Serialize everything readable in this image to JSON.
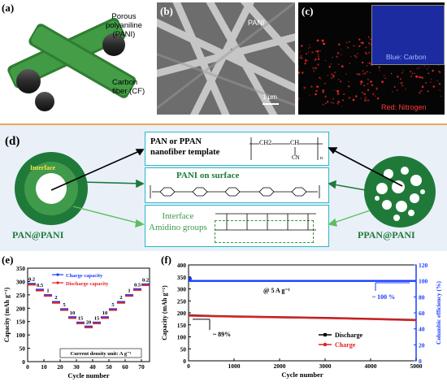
{
  "panels": {
    "a": {
      "label": "(a)",
      "pani_label": "Porous\npolyaniline\n(PANI)",
      "cf_label": "Carbon\nfiber (CF)"
    },
    "b": {
      "label": "(b)",
      "pani_label": "PANI",
      "scale_label": "1 μm"
    },
    "c": {
      "label": "(c)",
      "inset_label": "Blue: Carbon",
      "main_label": "Red: Nitrogen"
    },
    "d": {
      "label": "(d)",
      "interface_label": "Interface",
      "left_caption": "PAN@PANI",
      "right_caption": "PPAN@PANI",
      "box1_title": "PAN or PPAN\nnanofiber template",
      "box2_title": "PANI on surface",
      "box3_title": "Interface\nAmidino groups",
      "formula_ch2": "CH2",
      "formula_ch": "CH",
      "formula_cn": "CN",
      "formula_n": "n"
    },
    "e": {
      "label": "(e)"
    },
    "f": {
      "label": "(f)"
    }
  },
  "colors": {
    "green_dark": "#1f7a3a",
    "green_ring": "#3a9a4a",
    "teal_box": "#2ab7c6",
    "charge": "#1a3cff",
    "discharge": "#e02020"
  },
  "chart_data": [
    {
      "id": "e",
      "type": "line",
      "xlabel": "Cycle number",
      "ylabel": "Capacity (mAh g⁻¹)",
      "xlim": [
        0,
        75
      ],
      "ylim": [
        0,
        350
      ],
      "xticks": [
        0,
        10,
        20,
        30,
        40,
        50,
        60,
        70
      ],
      "yticks": [
        0,
        50,
        100,
        150,
        200,
        250,
        300,
        350
      ],
      "legend": [
        "Charge capacity",
        "Discharge capacity"
      ],
      "legend_position": "top-center",
      "note": "Current density unit: A g⁻¹",
      "steps": [
        {
          "label": "0.2",
          "from": 0,
          "to": 5,
          "value": 290
        },
        {
          "label": "0.5",
          "from": 5,
          "to": 10,
          "value": 268
        },
        {
          "label": "1",
          "from": 10,
          "to": 15,
          "value": 248
        },
        {
          "label": "2",
          "from": 15,
          "to": 20,
          "value": 222
        },
        {
          "label": "5",
          "from": 20,
          "to": 25,
          "value": 195
        },
        {
          "label": "10",
          "from": 25,
          "to": 30,
          "value": 165
        },
        {
          "label": "15",
          "from": 30,
          "to": 35,
          "value": 145
        },
        {
          "label": "20",
          "from": 35,
          "to": 40,
          "value": 130
        },
        {
          "label": "15",
          "from": 40,
          "to": 45,
          "value": 145
        },
        {
          "label": "10",
          "from": 45,
          "to": 50,
          "value": 165
        },
        {
          "label": "5",
          "from": 50,
          "to": 55,
          "value": 195
        },
        {
          "label": "2",
          "from": 55,
          "to": 60,
          "value": 222
        },
        {
          "label": "1",
          "from": 60,
          "to": 65,
          "value": 248
        },
        {
          "label": "0.5",
          "from": 65,
          "to": 70,
          "value": 270
        },
        {
          "label": "0.2",
          "from": 70,
          "to": 75,
          "value": 288
        }
      ]
    },
    {
      "id": "f",
      "type": "line",
      "xlabel": "Cycle number",
      "ylabel": "Capacity (mAh g⁻¹)",
      "y2label": "Columbic efficiency (%)",
      "xlim": [
        0,
        5000
      ],
      "ylim": [
        0,
        400
      ],
      "y2lim": [
        0,
        120
      ],
      "xticks": [
        0,
        1000,
        2000,
        3000,
        4000,
        5000
      ],
      "yticks": [
        0,
        50,
        100,
        150,
        200,
        250,
        300,
        350,
        400
      ],
      "y2ticks": [
        0,
        20,
        40,
        60,
        80,
        100,
        120
      ],
      "legend": [
        "Discharge",
        "Charge"
      ],
      "legend_position": "bottom-right",
      "annotations": [
        "@ 5 A g⁻¹",
        "~ 100 %",
        "~ 89%"
      ],
      "series": [
        {
          "name": "Discharge",
          "axis": "left",
          "x": [
            0,
            500,
            1000,
            2000,
            3000,
            4000,
            5000
          ],
          "values": [
            190,
            187,
            185,
            182,
            179,
            175,
            170
          ]
        },
        {
          "name": "Charge",
          "axis": "left",
          "x": [
            0,
            500,
            1000,
            2000,
            3000,
            4000,
            5000
          ],
          "values": [
            188,
            186,
            184,
            181,
            178,
            174,
            169
          ]
        },
        {
          "name": "Columbic efficiency",
          "axis": "right",
          "x": [
            0,
            1000,
            2000,
            3000,
            4000,
            5000
          ],
          "values": [
            100,
            100,
            100,
            100,
            100,
            100
          ]
        }
      ]
    }
  ]
}
